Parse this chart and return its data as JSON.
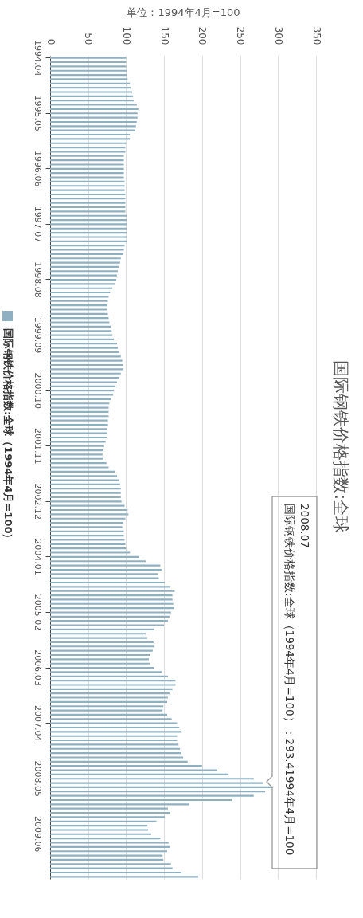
{
  "chart_data": {
    "type": "bar",
    "orientation": "horizontal",
    "title": "国际钢铁价格指数:全球",
    "xlabel": "单位：1994年4月=100",
    "categories": [
      "1994.04",
      null,
      null,
      null,
      null,
      null,
      null,
      null,
      null,
      null,
      null,
      null,
      null,
      "1995.05",
      null,
      null,
      null,
      null,
      null,
      null,
      null,
      null,
      null,
      null,
      null,
      null,
      "1996.06",
      null,
      null,
      null,
      null,
      null,
      null,
      null,
      null,
      null,
      null,
      null,
      null,
      "1997.07",
      null,
      null,
      null,
      null,
      null,
      null,
      null,
      null,
      null,
      null,
      null,
      null,
      "1998.08",
      null,
      null,
      null,
      null,
      null,
      null,
      null,
      null,
      null,
      null,
      null,
      null,
      "1999.09",
      null,
      null,
      null,
      null,
      null,
      null,
      null,
      null,
      null,
      null,
      null,
      null,
      "2000.10",
      null,
      null,
      null,
      null,
      null,
      null,
      null,
      null,
      null,
      null,
      null,
      null,
      "2001.11",
      null,
      null,
      null,
      null,
      null,
      null,
      null,
      null,
      null,
      null,
      null,
      null,
      "2002.12",
      null,
      null,
      null,
      null,
      null,
      null,
      null,
      null,
      null,
      null,
      null,
      null,
      "2004.01",
      null,
      null,
      null,
      null,
      null,
      null,
      null,
      null,
      null,
      null,
      null,
      null,
      "2005.02",
      null,
      null,
      null,
      null,
      null,
      null,
      null,
      null,
      null,
      null,
      null,
      null,
      "2006.03",
      null,
      null,
      null,
      null,
      null,
      null,
      null,
      null,
      null,
      null,
      null,
      null,
      "2007.04",
      null,
      null,
      null,
      null,
      null,
      null,
      null,
      null,
      null,
      null,
      null,
      null,
      "2008.05",
      null,
      null,
      null,
      null,
      null,
      null,
      null,
      null,
      null,
      null,
      null,
      null,
      "2009.06",
      null,
      null,
      null,
      null,
      null,
      null,
      null,
      null,
      null,
      null
    ],
    "series": [
      {
        "name": "国际钢铁价格指数:全球（1994年4月=100）",
        "color": "#8fb0c0",
        "values": [
          100,
          100,
          100,
          101,
          101,
          102,
          105,
          106,
          108,
          109,
          110,
          114,
          116,
          115,
          115,
          114,
          113,
          112,
          105,
          105,
          100,
          99,
          99,
          97,
          97,
          97,
          97,
          97,
          97,
          98,
          98,
          98,
          99,
          99,
          99,
          99,
          99,
          101,
          101,
          101,
          101,
          101,
          101,
          101,
          98,
          97,
          96,
          93,
          92,
          90,
          89,
          88,
          87,
          85,
          82,
          79,
          77,
          76,
          75,
          75,
          76,
          77,
          78,
          80,
          81,
          82,
          84,
          88,
          89,
          91,
          93,
          95,
          96,
          96,
          93,
          91,
          88,
          86,
          84,
          83,
          80,
          78,
          77,
          77,
          77,
          76,
          76,
          75,
          75,
          75,
          73,
          71,
          70,
          69,
          70,
          74,
          77,
          85,
          88,
          91,
          92,
          93,
          93,
          93,
          94,
          98,
          102,
          103,
          99,
          96,
          95,
          97,
          97,
          98,
          99,
          100,
          105,
          117,
          126,
          145,
          147,
          142,
          143,
          151,
          158,
          164,
          161,
          161,
          162,
          163,
          159,
          157,
          155,
          150,
          137,
          126,
          128,
          136,
          137,
          135,
          131,
          130,
          131,
          137,
          147,
          155,
          165,
          165,
          161,
          157,
          155,
          154,
          149,
          148,
          154,
          160,
          167,
          170,
          172,
          167,
          167,
          169,
          171,
          172,
          175,
          181,
          200,
          220,
          235,
          268,
          280,
          293.4,
          283,
          268,
          239,
          183,
          155,
          158,
          151,
          140,
          128,
          129,
          133,
          145,
          156,
          158,
          154,
          148,
          149,
          159,
          161,
          173,
          195
        ]
      }
    ],
    "xlim": [
      0,
      350
    ],
    "xticks": [
      0,
      50,
      100,
      150,
      200,
      250,
      300,
      350
    ],
    "grid": "x",
    "legend": "left",
    "annotations": [
      "2008.07",
      "国际钢铁价格指数:全球（1994年4月=100）：293.41994年4月=100"
    ]
  }
}
